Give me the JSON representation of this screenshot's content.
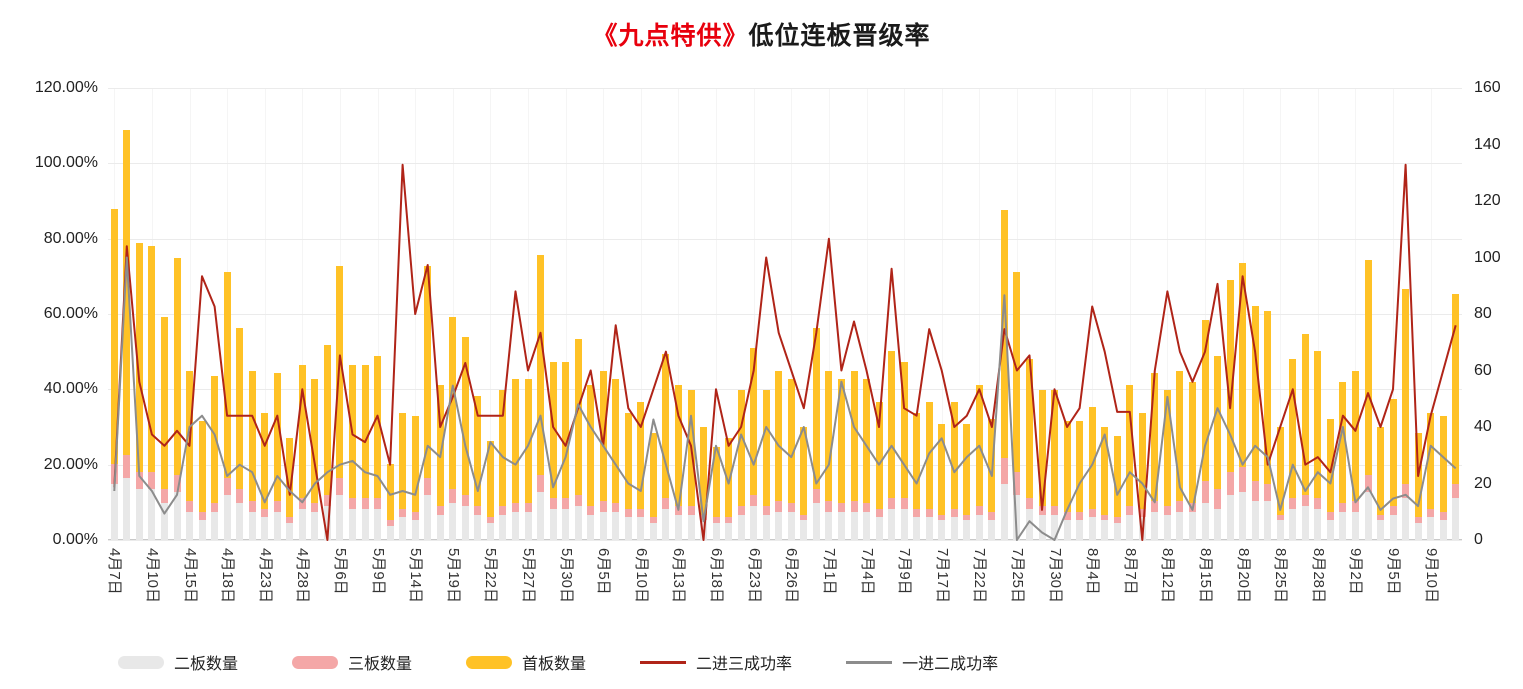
{
  "title": {
    "highlight": "《九点特供》",
    "rest": "低位连板晋级率"
  },
  "axes": {
    "left_ticks": [
      "120.00%",
      "100.00%",
      "80.00%",
      "60.00%",
      "40.00%",
      "20.00%",
      "0.00%"
    ],
    "right_ticks": [
      "160",
      "140",
      "120",
      "100",
      "80",
      "60",
      "40",
      "20",
      "0"
    ]
  },
  "legend": [
    {
      "label": "二板数量",
      "type": "bar",
      "color": "#e8e8e8"
    },
    {
      "label": "三板数量",
      "type": "bar",
      "color": "#f4a7a7"
    },
    {
      "label": "首板数量",
      "type": "bar",
      "color": "#ffc226"
    },
    {
      "label": "二进三成功率",
      "type": "line",
      "color": "#b02418"
    },
    {
      "label": "一进二成功率",
      "type": "line",
      "color": "#8c8c8c"
    }
  ],
  "chart_data": {
    "type": "combo-stacked-bar-line",
    "title": "《九点特供》低位连板晋级率",
    "n_points": 108,
    "label_interval": 3,
    "x_labels": [
      "4月7日",
      "4月10日",
      "4月15日",
      "4月18日",
      "4月23日",
      "4月28日",
      "5月6日",
      "5月9日",
      "5月14日",
      "5月19日",
      "5月22日",
      "5月27日",
      "5月30日",
      "6月5日",
      "6月10日",
      "6月13日",
      "6月18日",
      "6月23日",
      "6月26日",
      "7月1日",
      "7月4日",
      "7月9日",
      "7月17日",
      "7月22日",
      "7月25日",
      "7月30日",
      "8月4日",
      "8月7日",
      "8月12日",
      "8月15日",
      "8月20日",
      "8月25日",
      "8月28日",
      "9月2日",
      "9月5日",
      "9月10日"
    ],
    "left_axis": {
      "min": 0,
      "max": 120,
      "step": 20,
      "format": "percent"
    },
    "right_axis": {
      "min": 0,
      "max": 160,
      "step": 20
    },
    "grid": true,
    "legend_position": "bottom",
    "bar_series": [
      {
        "name": "二板数量",
        "axis": "right",
        "color": "#e8e8e8",
        "values": [
          20,
          22,
          18,
          18,
          13,
          17,
          10,
          7,
          10,
          16,
          13,
          10,
          8,
          10,
          6,
          11,
          10,
          12,
          16,
          11,
          11,
          11,
          5,
          8,
          7,
          16,
          9,
          13,
          12,
          9,
          6,
          9,
          10,
          10,
          17,
          11,
          11,
          12,
          9,
          10,
          10,
          8,
          8,
          6,
          11,
          9,
          9,
          7,
          6,
          6,
          9,
          12,
          9,
          10,
          10,
          7,
          13,
          10,
          10,
          10,
          10,
          8,
          11,
          11,
          8,
          8,
          7,
          8,
          7,
          9,
          7,
          20,
          16,
          11,
          9,
          9,
          7,
          7,
          8,
          7,
          6,
          9,
          8,
          10,
          9,
          10,
          10,
          13,
          11,
          16,
          17,
          14,
          14,
          7,
          11,
          12,
          11,
          7,
          10,
          10,
          17,
          7,
          9,
          15,
          6,
          8,
          7,
          15
        ]
      },
      {
        "name": "三板数量",
        "axis": "right",
        "color": "#f4a7a7",
        "values": [
          7,
          8,
          6,
          6,
          5,
          6,
          4,
          3,
          3,
          6,
          5,
          4,
          3,
          4,
          2,
          4,
          3,
          4,
          6,
          4,
          4,
          4,
          2,
          3,
          3,
          6,
          3,
          5,
          4,
          3,
          2,
          3,
          3,
          3,
          6,
          4,
          4,
          4,
          3,
          4,
          3,
          3,
          3,
          2,
          4,
          3,
          3,
          2,
          2,
          2,
          3,
          4,
          3,
          4,
          3,
          2,
          5,
          4,
          3,
          4,
          3,
          3,
          4,
          4,
          3,
          3,
          2,
          3,
          2,
          3,
          3,
          9,
          8,
          4,
          3,
          3,
          3,
          3,
          3,
          2,
          2,
          3,
          3,
          4,
          3,
          4,
          3,
          8,
          7,
          8,
          9,
          7,
          6,
          2,
          4,
          4,
          4,
          3,
          3,
          4,
          6,
          2,
          3,
          5,
          2,
          3,
          3,
          5
        ]
      },
      {
        "name": "首板数量",
        "axis": "right",
        "color": "#ffc226",
        "values": [
          90,
          115,
          81,
          80,
          61,
          77,
          46,
          32,
          45,
          73,
          57,
          46,
          34,
          45,
          28,
          47,
          44,
          53,
          75,
          47,
          47,
          50,
          20,
          34,
          34,
          75,
          43,
          61,
          56,
          39,
          27,
          41,
          44,
          44,
          78,
          48,
          48,
          55,
          43,
          46,
          44,
          34,
          38,
          30,
          51,
          43,
          41,
          31,
          25,
          28,
          41,
          52,
          41,
          46,
          44,
          31,
          57,
          46,
          44,
          46,
          44,
          38,
          52,
          48,
          34,
          38,
          32,
          38,
          32,
          43,
          33,
          88,
          71,
          49,
          41,
          41,
          32,
          32,
          36,
          31,
          29,
          43,
          34,
          45,
          41,
          46,
          43,
          57,
          47,
          68,
          72,
          62,
          61,
          31,
          49,
          57,
          52,
          33,
          43,
          46,
          76,
          31,
          38,
          69,
          30,
          34,
          34,
          67
        ]
      }
    ],
    "line_series": [
      {
        "name": "二进三成功率",
        "axis": "left",
        "unit": "%",
        "color": "#b02418",
        "values": [
          14,
          78,
          42,
          28,
          25,
          29,
          25,
          70,
          62,
          33,
          33,
          33,
          25,
          33,
          12,
          40,
          20,
          0,
          49,
          28,
          26,
          33,
          20,
          99.6,
          60,
          73,
          30,
          38,
          47,
          33,
          33,
          33,
          66,
          45,
          55,
          30,
          25,
          35,
          45,
          25,
          57,
          35,
          30,
          40,
          50,
          33,
          25,
          0,
          40,
          25,
          30,
          45,
          75,
          55,
          45,
          35,
          55,
          80,
          45,
          58,
          45,
          30,
          72,
          35,
          33,
          56,
          45,
          30,
          33,
          40,
          30,
          56,
          45,
          49,
          8,
          40,
          30,
          35,
          62,
          50,
          34,
          34,
          0,
          45,
          66,
          50,
          42,
          50,
          68,
          35,
          70,
          50,
          20,
          30,
          40,
          20,
          22,
          18,
          33,
          29,
          39,
          30,
          40,
          99.6,
          17,
          33,
          45,
          57
        ]
      },
      {
        "name": "一进二成功率",
        "axis": "left",
        "unit": "%",
        "color": "#8c8c8c",
        "values": [
          13,
          75,
          17,
          13,
          7,
          12,
          30,
          33,
          28,
          17,
          20,
          18,
          10,
          17,
          13,
          10,
          15,
          18,
          20,
          21,
          18,
          17,
          12,
          13,
          12,
          25,
          22,
          41,
          25,
          13,
          26,
          22,
          20,
          25,
          33,
          14,
          22,
          36,
          30,
          25,
          20,
          15,
          13,
          32,
          20,
          8,
          33,
          5,
          25,
          15,
          28,
          20,
          30,
          25,
          22,
          30,
          15,
          20,
          42,
          30,
          25,
          20,
          25,
          20,
          15,
          23,
          27,
          18,
          22,
          25,
          17,
          65,
          0,
          5,
          2,
          0,
          8,
          15,
          20,
          28,
          12,
          18,
          15,
          10,
          38,
          14,
          8,
          25,
          35,
          28,
          20,
          25,
          22,
          8,
          20,
          13,
          18,
          15,
          30,
          10,
          14,
          8,
          11,
          12,
          9,
          25,
          22,
          19
        ]
      }
    ]
  }
}
